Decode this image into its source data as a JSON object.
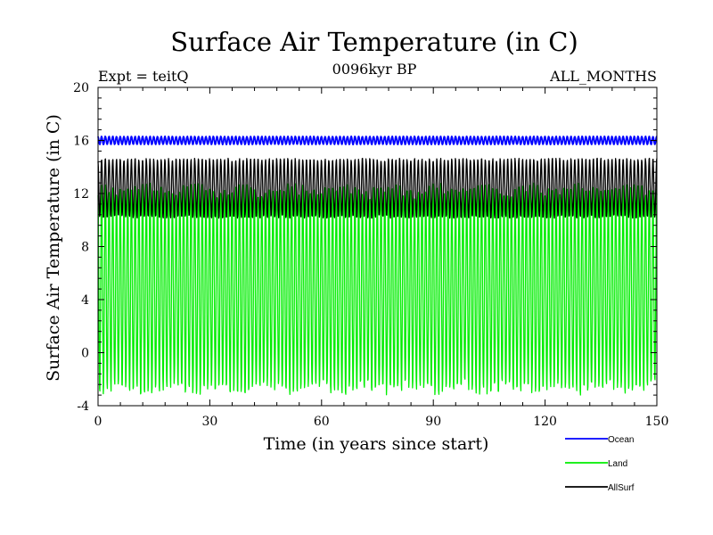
{
  "chart_data": {
    "type": "line",
    "title": "Surface Air Temperature (in C)",
    "subtitle_left": "Expt = teitQ",
    "subtitle_center": "0096kyr BP",
    "subtitle_right": "ALL_MONTHS",
    "xlabel": "Time (in years since start)",
    "ylabel": "Surface Air Temperature (in C)",
    "xlim": [
      0,
      150
    ],
    "ylim": [
      -4,
      20
    ],
    "xticks": [
      0,
      30,
      60,
      90,
      120,
      150
    ],
    "yticks": [
      -4,
      0,
      4,
      8,
      12,
      16,
      20
    ],
    "grid": false,
    "legend_position": "bottom-right",
    "sampling": "monthly",
    "series": [
      {
        "name": "Ocean",
        "color": "#0000ff",
        "mean": 16.0,
        "seasonal_amplitude": 0.3,
        "envelope": [
          15.6,
          16.5
        ]
      },
      {
        "name": "Land",
        "color": "#00ee00",
        "mean": 4.8,
        "seasonal_amplitude": 7.8,
        "envelope": [
          -3.3,
          13.2
        ]
      },
      {
        "name": "AllSurf",
        "color": "#000000",
        "mean": 12.4,
        "seasonal_amplitude": 2.2,
        "envelope": [
          9.9,
          14.8
        ]
      }
    ]
  }
}
